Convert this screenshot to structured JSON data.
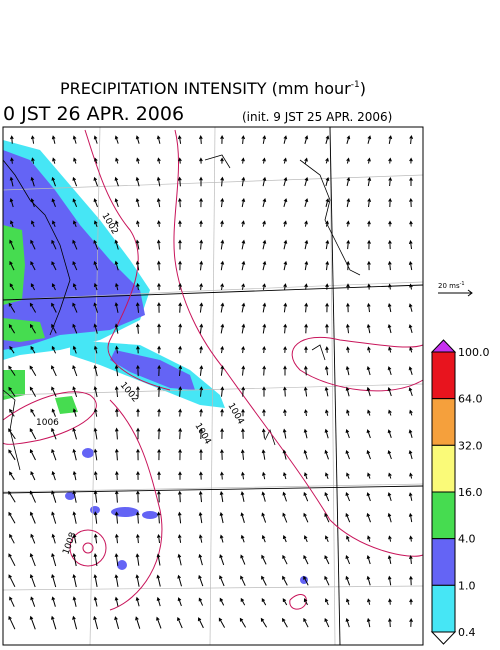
{
  "header": {
    "title": {
      "text": "PRECIPITATION INTENSITY (mm hour",
      "superscript": "-1",
      "suffix": ")"
    },
    "valid_time": "0 JST 26 APR. 2006",
    "init_time": "(init. 9 JST 25 APR. 2006)"
  },
  "vector_scale": {
    "text": "20 ms",
    "superscript": "-1"
  },
  "contour_labels": [
    "1002",
    "1002",
    "1004",
    "1004",
    "1006",
    "1008"
  ],
  "legend": {
    "levels": [
      {
        "label": "100.0",
        "color": "#e8141e"
      },
      {
        "label": "64.0",
        "color": "#f5a03c"
      },
      {
        "label": "32.0",
        "color": "#fafa78"
      },
      {
        "label": "16.0",
        "color": "#46dc50"
      },
      {
        "label": "4.0",
        "color": "#6464f5"
      },
      {
        "label": "1.0",
        "color": "#46e6f5"
      },
      {
        "label": "0.4",
        "color": "#ffffff"
      }
    ],
    "top_color": "#c832f0"
  }
}
